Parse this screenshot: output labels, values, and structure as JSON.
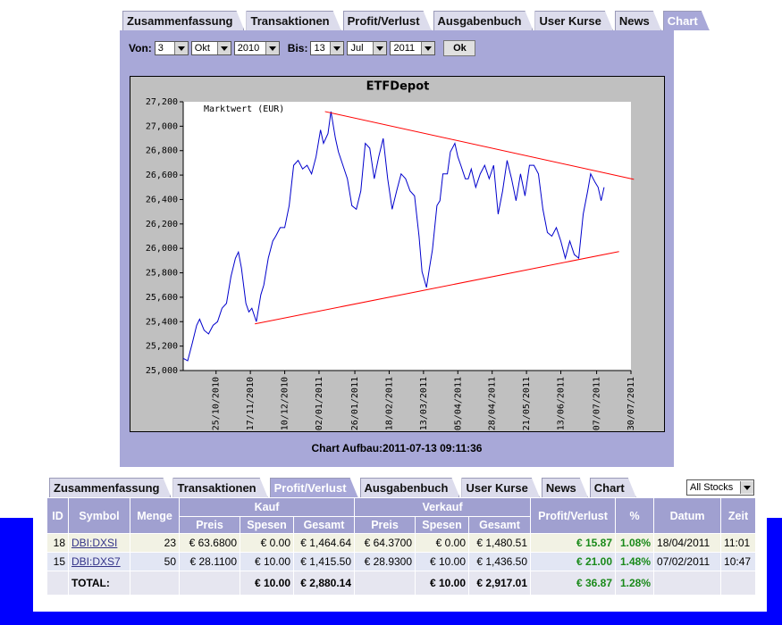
{
  "top_tabs": [
    "Zusammenfassung",
    "Transaktionen",
    "Profit/Verlust",
    "Ausgabenbuch",
    "User Kurse",
    "News",
    "Chart"
  ],
  "filters": {
    "from_label": "Von:",
    "from_day": "3",
    "from_month": "Okt",
    "from_year": "2010",
    "to_label": "Bis:",
    "to_day": "13",
    "to_month": "Jul",
    "to_year": "2011",
    "button": "Ok"
  },
  "chart_data": {
    "type": "line",
    "title": "ETFDepot",
    "x": [
      "03/10/2010",
      "06/10/2010",
      "09/10/2010",
      "12/10/2010",
      "14/10/2010",
      "17/10/2010",
      "20/10/2010",
      "23/10/2010",
      "26/10/2010",
      "29/10/2010",
      "01/11/2010",
      "04/11/2010",
      "07/11/2010",
      "09/11/2010",
      "11/11/2010",
      "14/11/2010",
      "16/11/2010",
      "18/11/2010",
      "21/11/2010",
      "24/11/2010",
      "26/11/2010",
      "29/11/2010",
      "02/12/2010",
      "04/12/2010",
      "07/12/2010",
      "10/12/2010",
      "13/12/2010",
      "16/12/2010",
      "19/12/2010",
      "22/12/2010",
      "25/12/2010",
      "28/12/2010",
      "31/12/2010",
      "03/01/2011",
      "05/01/2011",
      "08/01/2011",
      "10/01/2011",
      "13/01/2011",
      "15/01/2011",
      "18/01/2011",
      "21/01/2011",
      "24/01/2011",
      "27/01/2011",
      "30/01/2011",
      "02/02/2011",
      "05/02/2011",
      "08/02/2011",
      "11/02/2011",
      "14/02/2011",
      "17/02/2011",
      "20/02/2011",
      "23/02/2011",
      "26/02/2011",
      "01/03/2011",
      "04/03/2011",
      "07/03/2011",
      "10/03/2011",
      "12/03/2011",
      "15/03/2011",
      "17/03/2011",
      "19/03/2011",
      "22/03/2011",
      "24/03/2011",
      "26/03/2011",
      "29/03/2011",
      "31/03/2011",
      "03/04/2011",
      "05/04/2011",
      "07/04/2011",
      "10/04/2011",
      "12/04/2011",
      "14/04/2011",
      "17/04/2011",
      "20/04/2011",
      "23/04/2011",
      "26/04/2011",
      "29/04/2011",
      "02/05/2011",
      "05/05/2011",
      "08/05/2011",
      "11/05/2011",
      "14/05/2011",
      "17/05/2011",
      "20/05/2011",
      "23/05/2011",
      "26/05/2011",
      "29/05/2011",
      "01/06/2011",
      "04/06/2011",
      "07/06/2011",
      "10/06/2011",
      "13/06/2011",
      "16/06/2011",
      "19/06/2011",
      "22/06/2011",
      "25/06/2011",
      "28/06/2011",
      "01/07/2011",
      "03/07/2011",
      "06/07/2011",
      "08/07/2011",
      "10/07/2011",
      "12/07/2011"
    ],
    "series": [
      {
        "name": "Marktwert (EUR)",
        "color": "#0000cc",
        "values": [
          25100,
          25080,
          25220,
          25370,
          25420,
          25330,
          25300,
          25370,
          25400,
          25510,
          25550,
          25770,
          25920,
          25970,
          25840,
          25550,
          25480,
          25510,
          25400,
          25620,
          25700,
          25920,
          26060,
          26100,
          26170,
          26170,
          26350,
          26680,
          26720,
          26650,
          26680,
          26610,
          26750,
          26970,
          26860,
          26940,
          27120,
          26900,
          26790,
          26680,
          26570,
          26350,
          26320,
          26470,
          26860,
          26820,
          26570,
          26750,
          26900,
          26570,
          26320,
          26470,
          26610,
          26570,
          26470,
          26430,
          26100,
          25810,
          25680,
          25840,
          25990,
          26350,
          26390,
          26610,
          26610,
          26790,
          26860,
          26750,
          26680,
          26570,
          26570,
          26650,
          26500,
          26610,
          26680,
          26570,
          26680,
          26280,
          26470,
          26720,
          26570,
          26390,
          26610,
          26430,
          26680,
          26680,
          26610,
          26320,
          26130,
          26100,
          26170,
          26060,
          25920,
          26060,
          25950,
          25920,
          26280,
          26470,
          26610,
          26540,
          26500,
          26390,
          26500
        ]
      }
    ],
    "trend_lines": [
      {
        "color": "#ff0000",
        "x": [
          "06/01/2011",
          "01/08/2011"
        ],
        "values": [
          27120,
          26565
        ]
      },
      {
        "color": "#ff0000",
        "x": [
          "20/11/2010",
          "22/07/2011"
        ],
        "values": [
          25382,
          25974
        ]
      }
    ],
    "xlim": [
      "03/10/2010",
      "30/07/2011"
    ],
    "xticks": [
      "25/10/2010",
      "17/11/2010",
      "10/12/2010",
      "02/01/2011",
      "26/01/2011",
      "18/02/2011",
      "13/03/2011",
      "05/04/2011",
      "28/04/2011",
      "21/05/2011",
      "13/06/2011",
      "07/07/2011",
      "30/07/2011"
    ],
    "ylim": [
      25000,
      27200
    ],
    "yticks": [
      {
        "value": 25000,
        "label": "25,000"
      },
      {
        "value": 25200,
        "label": "25,200"
      },
      {
        "value": 25400,
        "label": "25,400"
      },
      {
        "value": 25600,
        "label": "25,600"
      },
      {
        "value": 25800,
        "label": "25,800"
      },
      {
        "value": 26000,
        "label": "26,000"
      },
      {
        "value": 26200,
        "label": "26,200"
      },
      {
        "value": 26400,
        "label": "26,400"
      },
      {
        "value": 26600,
        "label": "26,600"
      },
      {
        "value": 26800,
        "label": "26,800"
      },
      {
        "value": 27000,
        "label": "27,000"
      },
      {
        "value": 27200,
        "label": "27,200"
      }
    ]
  },
  "chart_caption": "Chart Aufbau:2011-07-13 09:11:36",
  "bottom_tabs": [
    "Zusammenfassung",
    "Transaktionen",
    "Profit/Verlust",
    "Ausgabenbuch",
    "User Kurse",
    "News",
    "Chart"
  ],
  "stock_filter": "All Stocks",
  "table": {
    "header_top": [
      "ID",
      "Symbol",
      "Menge",
      "Kauf",
      "Verkauf",
      "Profit/Verlust",
      "%",
      "Datum",
      "Zeit"
    ],
    "header_sub": [
      "Preis",
      "Spesen",
      "Gesamt",
      "Preis",
      "Spesen",
      "Gesamt"
    ],
    "rows": [
      [
        "18",
        "DBI:DXSI",
        "23",
        "€ 63.6800",
        "€ 0.00",
        "€ 1,464.64",
        "€ 64.3700",
        "€ 0.00",
        "€ 1,480.51",
        "€ 15.87",
        "1.08%",
        "18/04/2011",
        "11:01"
      ],
      [
        "15",
        "DBI:DXS7",
        "50",
        "€ 28.1100",
        "€ 10.00",
        "€ 1,415.50",
        "€ 28.9300",
        "€ 10.00",
        "€ 1,436.50",
        "€ 21.00",
        "1.48%",
        "07/02/2011",
        "10:47"
      ]
    ],
    "total": {
      "label": "TOTAL:",
      "kauf_spesen": "€ 10.00",
      "kauf_gesamt": "€ 2,880.14",
      "verkauf_spesen": "€ 10.00",
      "verkauf_gesamt": "€ 2,917.01",
      "profit": "€ 36.87",
      "percent": "1.28%"
    }
  }
}
